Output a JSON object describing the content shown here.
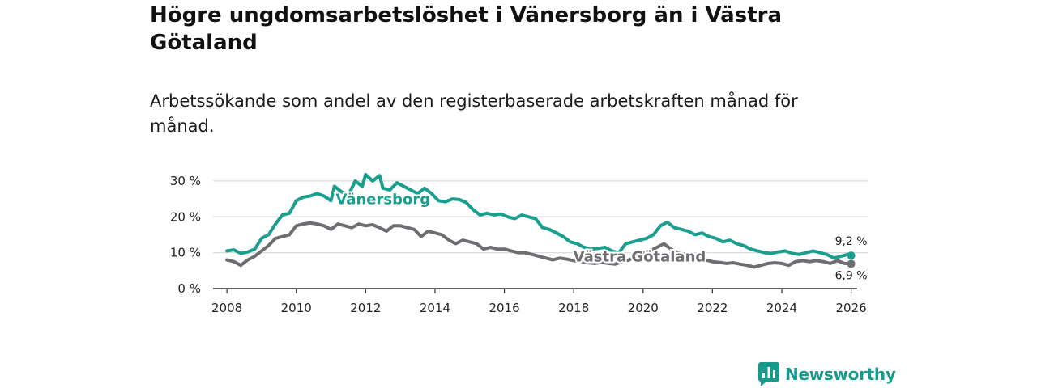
{
  "title": "Högre ungdomsarbetslöshet i Vänersborg än i Västra Götaland",
  "subtitle": "Arbetssökande som andel av den registerbaserade arbetskraften månad för månad.",
  "brand": {
    "name": "Newsworthy",
    "icon": "newsworthy-logo-icon"
  },
  "colors": {
    "vanersborg": "#1a9e8e",
    "vastra_gotaland": "#6e6e72",
    "grid": "#dcdcdc",
    "axis": "#333333"
  },
  "chart_data": {
    "type": "line",
    "xlim": [
      2007.6,
      2026.5
    ],
    "ylim": [
      0,
      32
    ],
    "y_ticks": [
      {
        "value": 0,
        "label": "0 %"
      },
      {
        "value": 10,
        "label": "10 %"
      },
      {
        "value": 20,
        "label": "20 %"
      },
      {
        "value": 30,
        "label": "30 %"
      }
    ],
    "x_ticks": [
      {
        "value": 2008,
        "label": "2008"
      },
      {
        "value": 2010,
        "label": "2010"
      },
      {
        "value": 2012,
        "label": "2012"
      },
      {
        "value": 2014,
        "label": "2014"
      },
      {
        "value": 2016,
        "label": "2016"
      },
      {
        "value": 2018,
        "label": "2018"
      },
      {
        "value": 2020,
        "label": "2020"
      },
      {
        "value": 2022,
        "label": "2022"
      },
      {
        "value": 2024,
        "label": "2024"
      },
      {
        "value": 2026,
        "label": "2026"
      }
    ],
    "series": [
      {
        "name": "Vänersborg",
        "color": "#1a9e8e",
        "label_anchor": {
          "x": 2012.5,
          "y": 23.6
        },
        "end_label": "9,2 %",
        "points": [
          [
            2008.0,
            10.5
          ],
          [
            2008.2,
            10.8
          ],
          [
            2008.4,
            9.8
          ],
          [
            2008.6,
            10.2
          ],
          [
            2008.8,
            11.0
          ],
          [
            2009.0,
            14.0
          ],
          [
            2009.2,
            15.0
          ],
          [
            2009.4,
            18.0
          ],
          [
            2009.6,
            20.5
          ],
          [
            2009.8,
            21.0
          ],
          [
            2010.0,
            24.5
          ],
          [
            2010.2,
            25.5
          ],
          [
            2010.4,
            25.8
          ],
          [
            2010.6,
            26.5
          ],
          [
            2010.8,
            25.8
          ],
          [
            2011.0,
            24.5
          ],
          [
            2011.1,
            28.5
          ],
          [
            2011.3,
            27.0
          ],
          [
            2011.5,
            26.0
          ],
          [
            2011.7,
            30.0
          ],
          [
            2011.9,
            28.5
          ],
          [
            2012.0,
            31.8
          ],
          [
            2012.2,
            30.0
          ],
          [
            2012.4,
            31.5
          ],
          [
            2012.5,
            28.0
          ],
          [
            2012.7,
            27.5
          ],
          [
            2012.9,
            29.5
          ],
          [
            2013.1,
            28.5
          ],
          [
            2013.3,
            27.5
          ],
          [
            2013.5,
            26.5
          ],
          [
            2013.7,
            28.0
          ],
          [
            2013.9,
            26.5
          ],
          [
            2014.1,
            24.5
          ],
          [
            2014.3,
            24.2
          ],
          [
            2014.5,
            25.0
          ],
          [
            2014.7,
            24.8
          ],
          [
            2014.9,
            24.0
          ],
          [
            2015.1,
            22.0
          ],
          [
            2015.3,
            20.5
          ],
          [
            2015.5,
            21.0
          ],
          [
            2015.7,
            20.5
          ],
          [
            2015.9,
            20.8
          ],
          [
            2016.1,
            20.0
          ],
          [
            2016.3,
            19.5
          ],
          [
            2016.5,
            20.5
          ],
          [
            2016.7,
            20.0
          ],
          [
            2016.9,
            19.5
          ],
          [
            2017.1,
            17.0
          ],
          [
            2017.3,
            16.5
          ],
          [
            2017.5,
            15.5
          ],
          [
            2017.7,
            14.5
          ],
          [
            2017.9,
            13.0
          ],
          [
            2018.1,
            12.5
          ],
          [
            2018.3,
            11.5
          ],
          [
            2018.5,
            11.0
          ],
          [
            2018.7,
            11.2
          ],
          [
            2018.9,
            11.5
          ],
          [
            2019.1,
            10.5
          ],
          [
            2019.3,
            10.0
          ],
          [
            2019.5,
            12.5
          ],
          [
            2019.7,
            13.0
          ],
          [
            2019.9,
            13.5
          ],
          [
            2020.1,
            14.0
          ],
          [
            2020.3,
            15.0
          ],
          [
            2020.5,
            17.5
          ],
          [
            2020.7,
            18.5
          ],
          [
            2020.9,
            17.0
          ],
          [
            2021.1,
            16.5
          ],
          [
            2021.3,
            16.0
          ],
          [
            2021.5,
            15.0
          ],
          [
            2021.7,
            15.5
          ],
          [
            2021.9,
            14.5
          ],
          [
            2022.1,
            14.0
          ],
          [
            2022.3,
            13.0
          ],
          [
            2022.5,
            13.5
          ],
          [
            2022.7,
            12.5
          ],
          [
            2022.9,
            12.0
          ],
          [
            2023.1,
            11.0
          ],
          [
            2023.3,
            10.5
          ],
          [
            2023.5,
            10.0
          ],
          [
            2023.7,
            9.8
          ],
          [
            2023.9,
            10.2
          ],
          [
            2024.1,
            10.5
          ],
          [
            2024.3,
            9.8
          ],
          [
            2024.5,
            9.5
          ],
          [
            2024.7,
            10.0
          ],
          [
            2024.9,
            10.5
          ],
          [
            2025.1,
            10.0
          ],
          [
            2025.3,
            9.5
          ],
          [
            2025.5,
            8.5
          ],
          [
            2025.7,
            9.0
          ],
          [
            2025.9,
            9.5
          ],
          [
            2026.0,
            9.2
          ]
        ]
      },
      {
        "name": "Västra Götaland",
        "color": "#6e6e72",
        "label_anchor": {
          "x": 2019.9,
          "y": 7.6
        },
        "end_label": "6,9 %",
        "points": [
          [
            2008.0,
            8.0
          ],
          [
            2008.2,
            7.5
          ],
          [
            2008.4,
            6.5
          ],
          [
            2008.6,
            8.0
          ],
          [
            2008.8,
            9.0
          ],
          [
            2009.0,
            10.5
          ],
          [
            2009.2,
            12.0
          ],
          [
            2009.4,
            14.0
          ],
          [
            2009.6,
            14.5
          ],
          [
            2009.8,
            15.0
          ],
          [
            2010.0,
            17.5
          ],
          [
            2010.2,
            18.0
          ],
          [
            2010.4,
            18.3
          ],
          [
            2010.6,
            18.0
          ],
          [
            2010.8,
            17.5
          ],
          [
            2011.0,
            16.5
          ],
          [
            2011.2,
            18.0
          ],
          [
            2011.4,
            17.5
          ],
          [
            2011.6,
            17.0
          ],
          [
            2011.8,
            18.0
          ],
          [
            2012.0,
            17.5
          ],
          [
            2012.2,
            17.8
          ],
          [
            2012.4,
            17.0
          ],
          [
            2012.6,
            16.0
          ],
          [
            2012.8,
            17.5
          ],
          [
            2013.0,
            17.5
          ],
          [
            2013.2,
            17.0
          ],
          [
            2013.4,
            16.5
          ],
          [
            2013.6,
            14.5
          ],
          [
            2013.8,
            16.0
          ],
          [
            2014.0,
            15.5
          ],
          [
            2014.2,
            15.0
          ],
          [
            2014.4,
            13.5
          ],
          [
            2014.6,
            12.5
          ],
          [
            2014.8,
            13.5
          ],
          [
            2015.0,
            13.0
          ],
          [
            2015.2,
            12.5
          ],
          [
            2015.4,
            11.0
          ],
          [
            2015.6,
            11.5
          ],
          [
            2015.8,
            11.0
          ],
          [
            2016.0,
            11.0
          ],
          [
            2016.2,
            10.5
          ],
          [
            2016.4,
            10.0
          ],
          [
            2016.6,
            10.0
          ],
          [
            2016.8,
            9.5
          ],
          [
            2017.0,
            9.0
          ],
          [
            2017.2,
            8.5
          ],
          [
            2017.4,
            8.0
          ],
          [
            2017.6,
            8.5
          ],
          [
            2017.8,
            8.2
          ],
          [
            2018.0,
            7.8
          ],
          [
            2018.2,
            7.5
          ],
          [
            2018.4,
            7.2
          ],
          [
            2018.6,
            7.0
          ],
          [
            2018.8,
            7.3
          ],
          [
            2019.0,
            7.0
          ],
          [
            2019.2,
            6.8
          ],
          [
            2019.4,
            7.5
          ],
          [
            2019.6,
            8.0
          ],
          [
            2019.8,
            9.0
          ],
          [
            2020.0,
            10.0
          ],
          [
            2020.2,
            10.5
          ],
          [
            2020.4,
            11.5
          ],
          [
            2020.6,
            12.5
          ],
          [
            2020.8,
            11.0
          ],
          [
            2021.0,
            10.0
          ],
          [
            2021.2,
            9.5
          ],
          [
            2021.4,
            9.0
          ],
          [
            2021.6,
            8.8
          ],
          [
            2021.8,
            8.0
          ],
          [
            2022.0,
            7.5
          ],
          [
            2022.2,
            7.3
          ],
          [
            2022.4,
            7.0
          ],
          [
            2022.6,
            7.2
          ],
          [
            2022.8,
            6.8
          ],
          [
            2023.0,
            6.5
          ],
          [
            2023.2,
            6.0
          ],
          [
            2023.4,
            6.5
          ],
          [
            2023.6,
            7.0
          ],
          [
            2023.8,
            7.2
          ],
          [
            2024.0,
            7.0
          ],
          [
            2024.2,
            6.5
          ],
          [
            2024.4,
            7.5
          ],
          [
            2024.6,
            7.8
          ],
          [
            2024.8,
            7.5
          ],
          [
            2025.0,
            7.8
          ],
          [
            2025.2,
            7.5
          ],
          [
            2025.4,
            7.0
          ],
          [
            2025.6,
            7.8
          ],
          [
            2025.8,
            7.0
          ],
          [
            2026.0,
            6.9
          ]
        ]
      }
    ]
  }
}
